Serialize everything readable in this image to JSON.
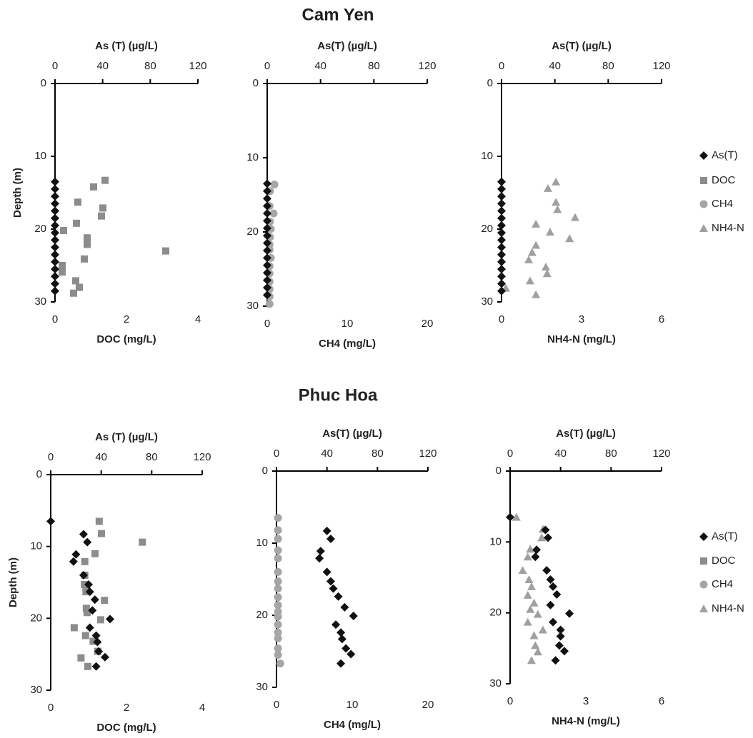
{
  "rows": [
    {
      "title": "Cam Yen",
      "legend": [
        {
          "name": "As(T)",
          "color": "#111111",
          "marker": "diamond"
        },
        {
          "name": "DOC",
          "color": "#8c8c8c",
          "marker": "square"
        },
        {
          "name": "CH4",
          "color": "#a6a6a6",
          "marker": "circle"
        },
        {
          "name": "NH4-N",
          "color": "#a0a0a0",
          "marker": "triangle"
        }
      ]
    },
    {
      "title": "Phuc Hoa",
      "legend": [
        {
          "name": "As(T)",
          "color": "#111111",
          "marker": "diamond"
        },
        {
          "name": "DOC",
          "color": "#8c8c8c",
          "marker": "square"
        },
        {
          "name": "CH4",
          "color": "#a6a6a6",
          "marker": "circle"
        },
        {
          "name": "NH4-N",
          "color": "#a0a0a0",
          "marker": "triangle"
        }
      ]
    }
  ],
  "chart_data": [
    {
      "type": "scatter",
      "row": 0,
      "top_axis_label": "As (T) (µg/L)",
      "bottom_axis_label": "DOC (mg/L)",
      "ylabel": "Depth (m)",
      "ylim": [
        0,
        30
      ],
      "y_inverted": true,
      "yticks": [
        0,
        10,
        20,
        30
      ],
      "x2lim": [
        0,
        120
      ],
      "x2ticks": [
        0,
        40,
        80,
        120
      ],
      "xlim": [
        0,
        4
      ],
      "xticks": [
        0,
        2,
        4
      ],
      "series": [
        {
          "legend": 0,
          "axis": "x2",
          "x": [
            0,
            0,
            0,
            0,
            0,
            0,
            0,
            0,
            0,
            0,
            0,
            0,
            0,
            0,
            0,
            0
          ],
          "values": [
            13.5,
            14.5,
            15.5,
            16.5,
            17.5,
            18.5,
            19.5,
            20.5,
            21.5,
            22.5,
            23.5,
            24.5,
            25.5,
            26.5,
            27.5,
            28.5
          ]
        },
        {
          "legend": 1,
          "axis": "x",
          "x": [
            1.4,
            1.08,
            0.64,
            1.34,
            1.3,
            0.6,
            0.24,
            0.9,
            0.9,
            3.1,
            0.82,
            0.2,
            0.2,
            0.58,
            0.68,
            0.52
          ],
          "values": [
            13.3,
            14.2,
            16.3,
            17.1,
            18.2,
            19.2,
            20.2,
            21.2,
            22.1,
            23,
            24.1,
            25,
            25.9,
            27.1,
            28,
            28.8
          ]
        }
      ]
    },
    {
      "type": "scatter",
      "row": 0,
      "top_axis_label": "As(T) (µg/L)",
      "bottom_axis_label": "CH4 (mg/L)",
      "ylim": [
        0,
        30
      ],
      "y_inverted": true,
      "yticks": [
        0,
        10,
        20,
        30
      ],
      "x2lim": [
        0,
        120
      ],
      "x2ticks": [
        0,
        40,
        80,
        120
      ],
      "xlim": [
        0,
        20
      ],
      "xticks": [
        0,
        10,
        20
      ],
      "series": [
        {
          "legend": 0,
          "axis": "x2",
          "x": [
            0,
            0,
            0,
            0,
            0,
            0,
            0,
            0,
            0,
            0,
            0,
            0,
            0,
            0,
            0,
            0
          ],
          "values": [
            13.5,
            14.5,
            15.5,
            16.5,
            17.5,
            18.5,
            19.5,
            20.5,
            21.5,
            22.5,
            23.5,
            24.5,
            25.5,
            26.5,
            27.5,
            28.5
          ]
        },
        {
          "legend": 2,
          "axis": "x",
          "x": [
            0.9,
            0.35,
            0.3,
            0.8,
            0.35,
            0.45,
            0.35,
            0.3,
            0.3,
            0.45,
            0.3,
            0.3,
            0.3,
            0.3,
            0.3,
            0.3
          ],
          "values": [
            13.6,
            14.5,
            16.5,
            17.5,
            18.6,
            19.6,
            20.7,
            21.7,
            22.4,
            23.5,
            24.6,
            25.6,
            26.7,
            27.7,
            28.7,
            29.7
          ]
        }
      ]
    },
    {
      "type": "scatter",
      "row": 0,
      "top_axis_label": "As(T) (µg/L)",
      "bottom_axis_label": "NH4-N (mg/L)",
      "ylim": [
        0,
        30
      ],
      "y_inverted": true,
      "yticks": [
        0,
        10,
        20,
        30
      ],
      "x2lim": [
        0,
        120
      ],
      "x2ticks": [
        0,
        40,
        80,
        120
      ],
      "xlim": [
        0,
        6
      ],
      "xticks": [
        0,
        3,
        6
      ],
      "series": [
        {
          "legend": 0,
          "axis": "x2",
          "x": [
            0,
            0,
            0,
            0,
            0,
            0,
            0,
            0,
            0,
            0,
            0,
            0,
            0,
            0,
            0,
            0
          ],
          "values": [
            13.5,
            14.5,
            15.5,
            16.5,
            17.5,
            18.5,
            19.5,
            20.5,
            21.5,
            22.5,
            23.5,
            24.5,
            25.5,
            26.5,
            27.5,
            28.5
          ]
        },
        {
          "legend": 3,
          "axis": "x",
          "x": [
            2.04,
            1.74,
            2.04,
            2.1,
            2.76,
            1.29,
            1.82,
            2.55,
            1.29,
            1.15,
            1.02,
            1.66,
            1.71,
            1.07,
            0.16,
            1.29
          ],
          "values": [
            13.5,
            14.4,
            16.3,
            17.3,
            18.4,
            19.3,
            20.4,
            21.3,
            22.2,
            23.2,
            24.2,
            25.2,
            26.1,
            27.1,
            28.1,
            29
          ]
        }
      ]
    },
    {
      "type": "scatter",
      "row": 1,
      "top_axis_label": "As (T) (µg/L)",
      "bottom_axis_label": "DOC (mg/L)",
      "ylabel": "Depth (m)",
      "ylim": [
        0,
        30
      ],
      "y_inverted": true,
      "yticks": [
        0,
        10,
        20,
        30
      ],
      "x2lim": [
        0,
        120
      ],
      "x2ticks": [
        0,
        40,
        80,
        120
      ],
      "xlim": [
        0,
        4
      ],
      "xticks": [
        0,
        2,
        4
      ],
      "series": [
        {
          "legend": 0,
          "axis": "x2",
          "x": [
            0,
            26,
            29,
            20,
            18,
            26,
            30,
            31,
            35,
            33,
            47,
            31,
            36,
            37,
            38,
            43,
            36
          ],
          "values": [
            6.5,
            8.3,
            9.4,
            11.1,
            12.1,
            14,
            15.3,
            16.3,
            17.4,
            18.9,
            20.1,
            21.3,
            22.4,
            23.3,
            24.6,
            25.4,
            26.7
          ]
        },
        {
          "legend": 1,
          "axis": "x",
          "x": [
            1.28,
            1.34,
            2.42,
            1.17,
            0.9,
            0.9,
            0.89,
            0.93,
            1.42,
            0.94,
            0.96,
            1.32,
            0.62,
            0.92,
            1.12,
            1.24,
            0.8,
            0.98
          ],
          "values": [
            6.5,
            8.2,
            9.4,
            11,
            12.1,
            14,
            15.3,
            16.3,
            17.5,
            18.6,
            19.2,
            20.2,
            21.3,
            22.4,
            23.2,
            24.6,
            25.5,
            26.7
          ]
        }
      ]
    },
    {
      "type": "scatter",
      "row": 1,
      "top_axis_label": "As(T) (µg/L)",
      "bottom_axis_label": "CH4 (mg/L)",
      "ylim": [
        0,
        30
      ],
      "y_inverted": true,
      "yticks": [
        0,
        10,
        20,
        30
      ],
      "x2lim": [
        0,
        120
      ],
      "x2ticks": [
        0,
        40,
        80,
        120
      ],
      "xlim": [
        0,
        20
      ],
      "xticks": [
        0,
        10,
        20
      ],
      "series": [
        {
          "legend": 0,
          "axis": "x2",
          "x": [
            40,
            43,
            35,
            34,
            40,
            43,
            45,
            49,
            54,
            61,
            47,
            51,
            52,
            55,
            59,
            51
          ],
          "values": [
            8.3,
            9.4,
            11.1,
            12.1,
            14,
            15.3,
            16.3,
            17.4,
            18.9,
            20.1,
            21.3,
            22.4,
            23.3,
            24.6,
            25.4,
            26.7
          ]
        },
        {
          "legend": 2,
          "axis": "x",
          "x": [
            0.2,
            0.2,
            0.2,
            0.2,
            0.2,
            0.2,
            0.2,
            0.2,
            0.2,
            0.2,
            0.2,
            0.2,
            0.2,
            0.2,
            0.2,
            0.2,
            0.2,
            0.5
          ],
          "values": [
            6.5,
            8.2,
            9.4,
            11,
            12.1,
            14,
            15.3,
            16.3,
            17.5,
            18.6,
            19.5,
            20.2,
            21.3,
            22.4,
            23.2,
            24.6,
            25.5,
            26.7
          ]
        }
      ]
    },
    {
      "type": "scatter",
      "row": 1,
      "top_axis_label": "As(T) (µg/L)",
      "bottom_axis_label": "NH4-N (mg/L)",
      "ylim": [
        0,
        30
      ],
      "y_inverted": true,
      "yticks": [
        0,
        10,
        20,
        30
      ],
      "x2lim": [
        0,
        120
      ],
      "x2ticks": [
        0,
        40,
        80,
        120
      ],
      "xlim": [
        0,
        6
      ],
      "xticks": [
        0,
        3,
        6
      ],
      "series": [
        {
          "legend": 0,
          "axis": "x2",
          "x": [
            0,
            28,
            30,
            21,
            20,
            29,
            32,
            34,
            37,
            32,
            47,
            34,
            40,
            40,
            39,
            43,
            36
          ],
          "values": [
            6.5,
            8.3,
            9.4,
            11.1,
            12.1,
            14,
            15.3,
            16.3,
            17.4,
            18.9,
            20.1,
            21.3,
            22.4,
            23.3,
            24.6,
            25.4,
            26.7
          ]
        },
        {
          "legend": 3,
          "axis": "x",
          "x": [
            0.25,
            1.3,
            1.25,
            0.8,
            0.7,
            0.5,
            0.75,
            0.85,
            0.7,
            0.95,
            0.8,
            1.1,
            0.7,
            1.3,
            0.95,
            1.0,
            1.1,
            0.85
          ],
          "values": [
            6.5,
            8.2,
            9.4,
            11,
            12.1,
            14,
            15.3,
            16.3,
            17.5,
            18.6,
            19.5,
            20.2,
            21.3,
            22.4,
            23.2,
            24.6,
            25.5,
            26.7
          ]
        }
      ]
    }
  ]
}
